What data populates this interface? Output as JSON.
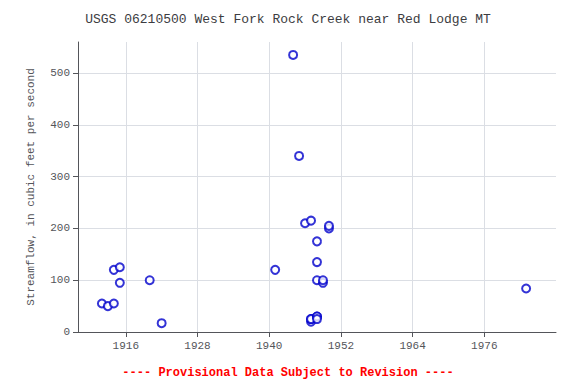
{
  "chart_data": {
    "type": "scatter",
    "title": "USGS 06210500 West Fork Rock Creek near Red Lodge MT",
    "ylabel": "Streamflow, in cubic feet per second",
    "x": [
      1912,
      1913,
      1914,
      1914,
      1915,
      1915,
      1920,
      1922,
      1941,
      1944,
      1945,
      1946,
      1947,
      1948,
      1948,
      1948,
      1949,
      1949,
      1947,
      1947,
      1947,
      1948,
      1948,
      1948,
      1950,
      1950,
      1983
    ],
    "values": [
      55,
      50,
      55,
      120,
      125,
      95,
      100,
      17,
      120,
      535,
      340,
      210,
      215,
      175,
      100,
      135,
      95,
      100,
      20,
      25,
      25,
      30,
      30,
      25,
      200,
      205,
      84
    ],
    "color": "#0000cc",
    "marker": "open_circle",
    "xlim": [
      1908,
      1988
    ],
    "xticks": [
      1916,
      1928,
      1940,
      1952,
      1964,
      1976
    ],
    "ylim": [
      0,
      560
    ],
    "yticks": [
      0,
      100,
      200,
      300,
      400,
      500
    ],
    "grid": true,
    "annotations": [
      {
        "text": "---- Provisional Data Subject to Revision ----",
        "color": "#ff0000"
      }
    ]
  }
}
